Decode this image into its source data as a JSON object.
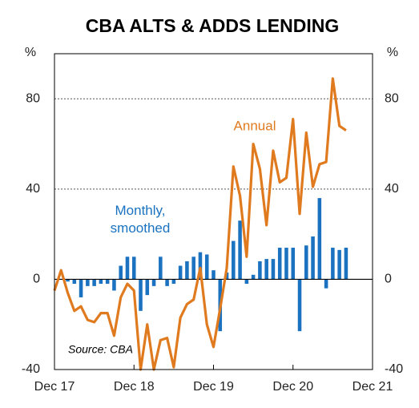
{
  "chart_data": {
    "type": "bar+line",
    "title": "CBA ALTS & ADDS LENDING",
    "y_label": "%",
    "y2_label": "%",
    "source": "Source: CBA",
    "x": [
      0,
      1,
      2,
      3,
      4,
      5,
      6,
      7,
      8,
      9,
      10,
      11,
      12,
      13,
      14,
      15,
      16,
      17,
      18,
      19,
      20,
      21,
      22,
      23,
      24,
      25,
      26,
      27,
      28,
      29,
      30,
      31,
      32,
      33,
      34,
      35,
      36,
      37,
      38,
      39,
      40,
      41,
      42,
      43,
      44
    ],
    "xlim": [
      0,
      48
    ],
    "xticks": [
      {
        "value": 0,
        "label": "Dec 17"
      },
      {
        "value": 12,
        "label": "Dec 18"
      },
      {
        "value": 24,
        "label": "Dec 19"
      },
      {
        "value": 36,
        "label": "Dec 20"
      },
      {
        "value": 48,
        "label": "Dec 21"
      }
    ],
    "ylim": [
      -40,
      100
    ],
    "yticks": [
      -40,
      0,
      40,
      80
    ],
    "y2lim": [
      -40,
      100
    ],
    "y2ticks": [
      -40,
      0,
      40,
      80
    ],
    "grid": true,
    "series": [
      {
        "name": "Monthly, smoothed",
        "type": "bar",
        "color": "#1a72c0",
        "values": [
          null,
          null,
          -1,
          -2,
          -8,
          -3,
          -3,
          -2,
          -2,
          -5,
          6,
          10,
          10,
          -14,
          -7,
          -3,
          10,
          -3,
          -2,
          6,
          8,
          10,
          12,
          11,
          4,
          -23,
          3,
          17,
          26,
          -2,
          2,
          8,
          9,
          9,
          14,
          14,
          14,
          -23,
          15,
          19,
          36,
          -4,
          14,
          13,
          14
        ]
      },
      {
        "name": "Annual",
        "type": "line",
        "color": "#e07a1f",
        "values": [
          -5,
          4,
          -6,
          -14,
          -12,
          -18,
          -19,
          -15,
          -15,
          -25,
          -8,
          -2,
          -5,
          -40,
          -20,
          -40,
          -27,
          -26,
          -39,
          -17,
          -11,
          -9,
          5,
          -20,
          -30,
          -13,
          5,
          50,
          37,
          10,
          60,
          49,
          24,
          57,
          43,
          45,
          71,
          29,
          65,
          41,
          51,
          52,
          89,
          68,
          66
        ]
      }
    ]
  }
}
